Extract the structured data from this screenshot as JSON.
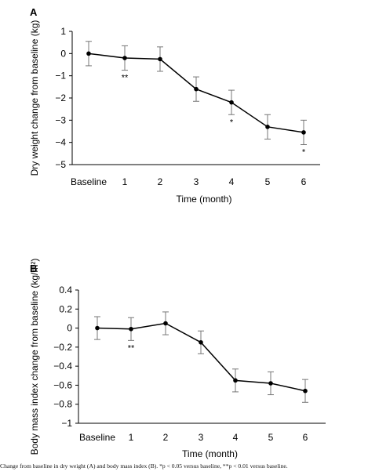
{
  "chart_data": [
    {
      "panel": "A",
      "type": "line",
      "xlabel": "Time (month)",
      "ylabel": "Dry weight change from baseline (kg)",
      "categories": [
        "Baseline",
        "1",
        "2",
        "3",
        "4",
        "5",
        "6"
      ],
      "y_ticks": [
        "1",
        "0",
        "−1",
        "−2",
        "−3",
        "−4",
        "−5"
      ],
      "ylim": [
        -5,
        1
      ],
      "values": [
        0.0,
        -0.2,
        -0.25,
        -1.6,
        -2.2,
        -3.3,
        -3.55
      ],
      "error": [
        0.55,
        0.55,
        0.55,
        0.55,
        0.55,
        0.55,
        0.55
      ],
      "annotations": [
        "",
        "**",
        "",
        "",
        "*",
        "",
        "*"
      ],
      "grid": false,
      "color": "#000000"
    },
    {
      "panel": "B",
      "type": "line",
      "xlabel": "Time (month)",
      "ylabel": "Body mass index change from baseline (kg/m²)",
      "categories": [
        "Baseline",
        "1",
        "2",
        "3",
        "4",
        "5",
        "6"
      ],
      "y_ticks": [
        "0.4",
        "0.2",
        "0",
        "−0.2",
        "−0.4",
        "−0.6",
        "−0.8",
        "−1"
      ],
      "ylim": [
        -1,
        0.4
      ],
      "values": [
        0.0,
        -0.01,
        0.05,
        -0.15,
        -0.55,
        -0.58,
        -0.66
      ],
      "error": [
        0.12,
        0.12,
        0.12,
        0.12,
        0.12,
        0.12,
        0.12
      ],
      "annotations": [
        "",
        "**",
        "",
        "",
        "",
        "",
        ""
      ],
      "grid": false,
      "color": "#000000"
    }
  ],
  "caption": "Change from baseline in dry weight (A) and body mass index (B). *p < 0.05 versus baseline, **p < 0.01 versus baseline."
}
